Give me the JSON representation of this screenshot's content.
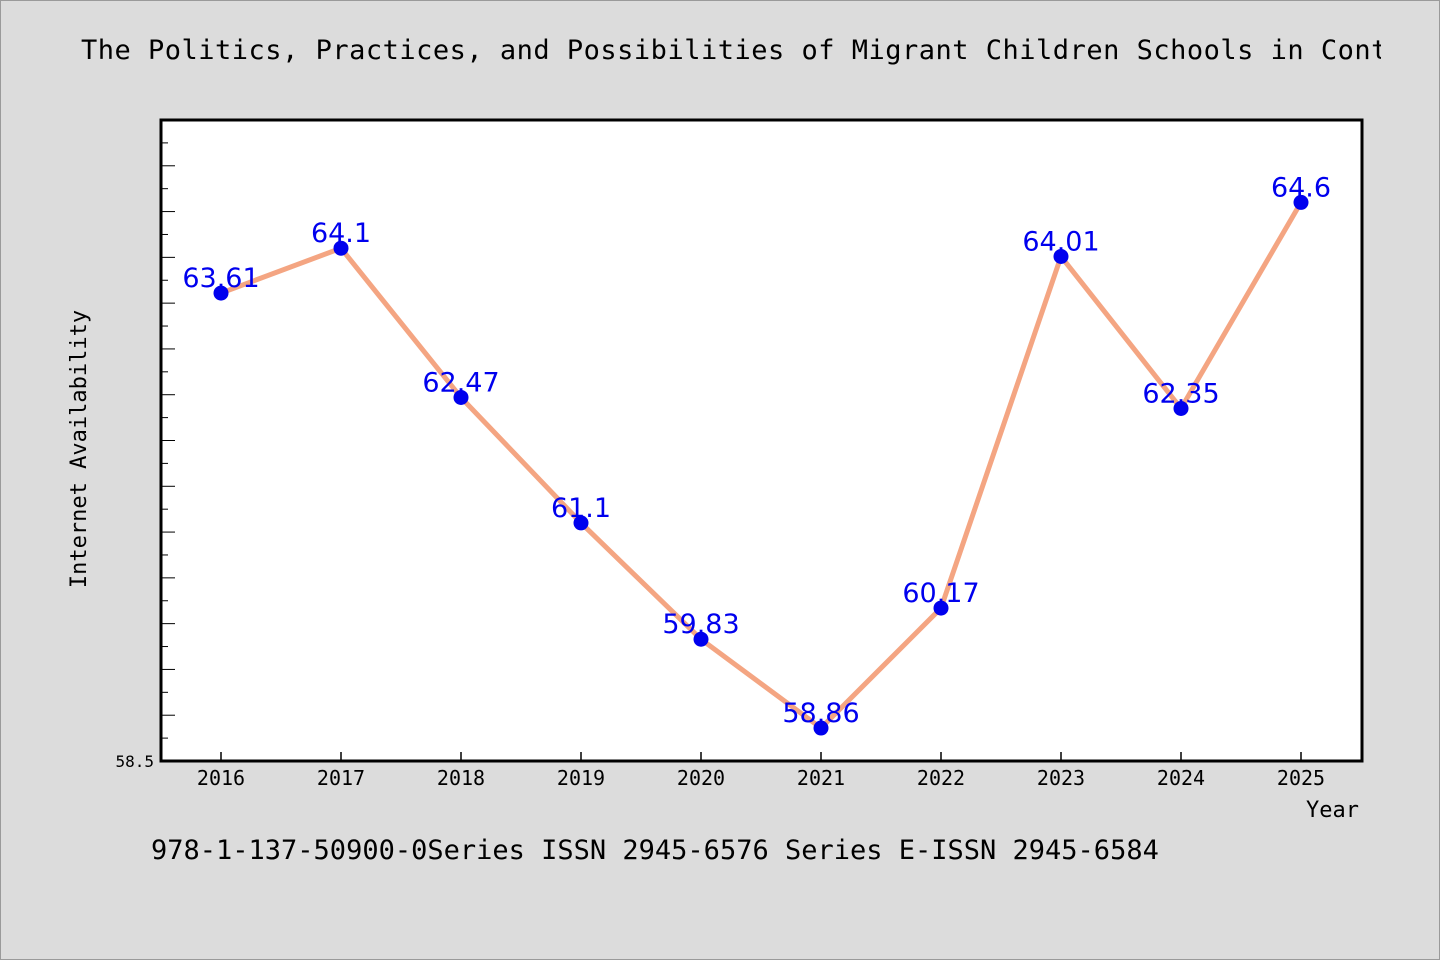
{
  "title": "The Politics, Practices, and Possibilities of Migrant Children Schools in Contem",
  "footer": "978-1-137-50900-0Series ISSN 2945-6576 Series E-ISSN 2945-6584",
  "colors": {
    "line": "#f4a582",
    "marker": "#0000ee",
    "label": "#0000ee",
    "background": "#dcdcdc",
    "plot_background": "#ffffff"
  },
  "chart_data": {
    "type": "line",
    "x": [
      "2016",
      "2017",
      "2018",
      "2019",
      "2020",
      "2021",
      "2022",
      "2023",
      "2024",
      "2025"
    ],
    "series": [
      {
        "values": [
          63.61,
          64.1,
          62.47,
          61.1,
          59.83,
          58.86,
          60.17,
          64.01,
          62.35,
          64.6
        ],
        "labels": [
          "63.61",
          "64.1",
          "62.47",
          "61.1",
          "59.83",
          "58.86",
          "60.17",
          "64.01",
          "62.35",
          "64.6"
        ]
      }
    ],
    "xlabel": "Year",
    "ylabel": "Internet Availability",
    "ymin_label": "58.5",
    "ylim": [
      58.5,
      65.5
    ],
    "grid": false,
    "legend": "none"
  }
}
